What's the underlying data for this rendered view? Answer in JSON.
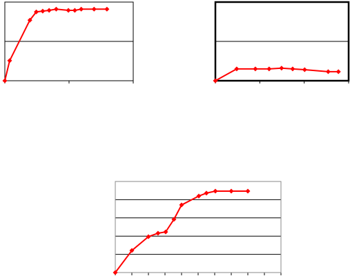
{
  "chart_data": [
    {
      "type": "line",
      "xlim": [
        0,
        2
      ],
      "xticks": [
        0,
        1,
        2
      ],
      "ylim": [
        0,
        2
      ],
      "yticks": [
        0,
        1,
        2
      ],
      "grid": true,
      "x": [
        0,
        0.075,
        0.39,
        0.49,
        0.59,
        0.69,
        0.8,
        0.99,
        1.09,
        1.19,
        1.39,
        1.59
      ],
      "series": [
        {
          "color": "#ff0000",
          "values": [
            0,
            0.51,
            1.54,
            1.75,
            1.77,
            1.79,
            1.82,
            1.79,
            1.79,
            1.82,
            1.82,
            1.82
          ]
        }
      ]
    },
    {
      "type": "line",
      "xlim": [
        0,
        3
      ],
      "xticks": [
        0,
        1,
        2,
        3
      ],
      "ylim": [
        0,
        2
      ],
      "yticks": [
        0,
        1,
        2
      ],
      "grid": true,
      "x": [
        0,
        0.48,
        0.9,
        1.21,
        1.49,
        1.74,
        2.01,
        2.54,
        2.77
      ],
      "series": [
        {
          "color": "#ff0000",
          "values": [
            0,
            0.3,
            0.3,
            0.3,
            0.32,
            0.3,
            0.28,
            0.23,
            0.23
          ]
        }
      ]
    },
    {
      "type": "line",
      "xlim": [
        0,
        10
      ],
      "xticks": [
        0,
        1,
        2,
        3,
        4,
        5,
        6,
        7,
        8,
        9,
        10
      ],
      "ylim": [
        0,
        5
      ],
      "yticks": [
        0,
        1,
        2,
        3,
        4,
        5
      ],
      "grid": true,
      "x": [
        0,
        1,
        2,
        2.58,
        3.04,
        3.54,
        4,
        5.04,
        5.5,
        6.04,
        7,
        8
      ],
      "series": [
        {
          "color": "#ff0000",
          "values": [
            0,
            1.21,
            1.97,
            2.16,
            2.23,
            2.92,
            3.71,
            4.2,
            4.36,
            4.47,
            4.47,
            4.47
          ]
        }
      ]
    }
  ]
}
